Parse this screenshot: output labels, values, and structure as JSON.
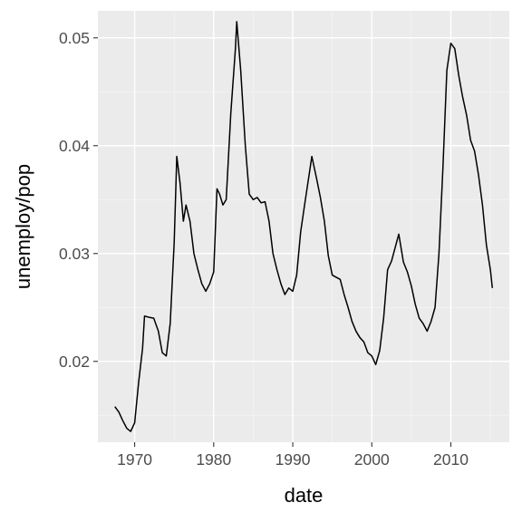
{
  "chart_data": {
    "type": "line",
    "title": "",
    "xlabel": "date",
    "ylabel": "unemploy/pop",
    "x_ticks": [
      "1970",
      "1980",
      "1990",
      "2000",
      "2010"
    ],
    "y_ticks": [
      "0.02",
      "0.03",
      "0.04",
      "0.05"
    ],
    "xlim": [
      "1967-07-01",
      "2015-04-01"
    ],
    "ylim": [
      0.0125,
      0.0525
    ],
    "grid": true,
    "legend": "none",
    "colors": {
      "panel": "#ebebeb",
      "grid_major": "#ffffff",
      "grid_minor": "#f5f5f5",
      "line": "#000000",
      "tick": "#333333",
      "tick_label": "#4d4d4d"
    },
    "series": [
      {
        "name": "",
        "points": [
          [
            "1967-07-01",
            0.0158
          ],
          [
            "1968-01-01",
            0.0153
          ],
          [
            "1968-07-01",
            0.0145
          ],
          [
            "1969-01-01",
            0.0138
          ],
          [
            "1969-07-01",
            0.0135
          ],
          [
            "1970-01-01",
            0.0143
          ],
          [
            "1970-07-01",
            0.018
          ],
          [
            "1971-01-01",
            0.0212
          ],
          [
            "1971-04-01",
            0.0242
          ],
          [
            "1971-10-01",
            0.0241
          ],
          [
            "1972-06-01",
            0.024
          ],
          [
            "1973-01-01",
            0.0228
          ],
          [
            "1973-07-01",
            0.0208
          ],
          [
            "1974-01-01",
            0.0205
          ],
          [
            "1974-07-01",
            0.0235
          ],
          [
            "1975-01-01",
            0.031
          ],
          [
            "1975-05-01",
            0.039
          ],
          [
            "1975-10-01",
            0.0365
          ],
          [
            "1976-03-01",
            0.033
          ],
          [
            "1976-07-01",
            0.0345
          ],
          [
            "1977-01-01",
            0.033
          ],
          [
            "1977-07-01",
            0.03
          ],
          [
            "1978-01-01",
            0.0285
          ],
          [
            "1978-07-01",
            0.0272
          ],
          [
            "1979-01-01",
            0.0265
          ],
          [
            "1979-07-01",
            0.0272
          ],
          [
            "1980-01-01",
            0.0283
          ],
          [
            "1980-06-01",
            0.036
          ],
          [
            "1980-10-01",
            0.0355
          ],
          [
            "1981-03-01",
            0.0345
          ],
          [
            "1981-08-01",
            0.035
          ],
          [
            "1982-03-01",
            0.043
          ],
          [
            "1982-10-01",
            0.049
          ],
          [
            "1982-12-01",
            0.0515
          ],
          [
            "1983-06-01",
            0.047
          ],
          [
            "1984-01-01",
            0.04
          ],
          [
            "1984-07-01",
            0.0355
          ],
          [
            "1985-01-01",
            0.035
          ],
          [
            "1985-07-01",
            0.0352
          ],
          [
            "1986-01-01",
            0.0347
          ],
          [
            "1986-07-01",
            0.0348
          ],
          [
            "1987-01-01",
            0.033
          ],
          [
            "1987-07-01",
            0.03
          ],
          [
            "1988-01-01",
            0.0285
          ],
          [
            "1988-07-01",
            0.0272
          ],
          [
            "1989-01-01",
            0.0262
          ],
          [
            "1989-07-01",
            0.0268
          ],
          [
            "1990-01-01",
            0.0265
          ],
          [
            "1990-07-01",
            0.028
          ],
          [
            "1991-01-01",
            0.032
          ],
          [
            "1991-07-01",
            0.0345
          ],
          [
            "1992-06-01",
            0.039
          ],
          [
            "1993-01-01",
            0.037
          ],
          [
            "1993-07-01",
            0.0352
          ],
          [
            "1994-01-01",
            0.033
          ],
          [
            "1994-07-01",
            0.0298
          ],
          [
            "1995-01-01",
            0.028
          ],
          [
            "1995-07-01",
            0.0278
          ],
          [
            "1996-01-01",
            0.0276
          ],
          [
            "1996-07-01",
            0.0262
          ],
          [
            "1997-01-01",
            0.025
          ],
          [
            "1997-07-01",
            0.0237
          ],
          [
            "1998-01-01",
            0.0228
          ],
          [
            "1998-07-01",
            0.0222
          ],
          [
            "1999-01-01",
            0.0218
          ],
          [
            "1999-07-01",
            0.0208
          ],
          [
            "2000-01-01",
            0.0205
          ],
          [
            "2000-07-01",
            0.0197
          ],
          [
            "2001-01-01",
            0.021
          ],
          [
            "2001-07-01",
            0.024
          ],
          [
            "2002-01-01",
            0.0285
          ],
          [
            "2002-07-01",
            0.0293
          ],
          [
            "2003-06-01",
            0.0318
          ],
          [
            "2004-01-01",
            0.0292
          ],
          [
            "2004-07-01",
            0.0283
          ],
          [
            "2005-01-01",
            0.027
          ],
          [
            "2005-07-01",
            0.0253
          ],
          [
            "2006-01-01",
            0.024
          ],
          [
            "2006-07-01",
            0.0235
          ],
          [
            "2007-01-01",
            0.0228
          ],
          [
            "2007-07-01",
            0.0237
          ],
          [
            "2008-01-01",
            0.025
          ],
          [
            "2008-07-01",
            0.03
          ],
          [
            "2009-01-01",
            0.038
          ],
          [
            "2009-07-01",
            0.047
          ],
          [
            "2010-01-01",
            0.0495
          ],
          [
            "2010-07-01",
            0.049
          ],
          [
            "2011-01-01",
            0.0465
          ],
          [
            "2011-07-01",
            0.0445
          ],
          [
            "2012-01-01",
            0.0428
          ],
          [
            "2012-07-01",
            0.0405
          ],
          [
            "2013-01-01",
            0.0395
          ],
          [
            "2013-07-01",
            0.0373
          ],
          [
            "2014-01-01",
            0.0345
          ],
          [
            "2014-07-01",
            0.0308
          ],
          [
            "2015-01-01",
            0.0285
          ],
          [
            "2015-04-01",
            0.0268
          ]
        ]
      }
    ]
  }
}
